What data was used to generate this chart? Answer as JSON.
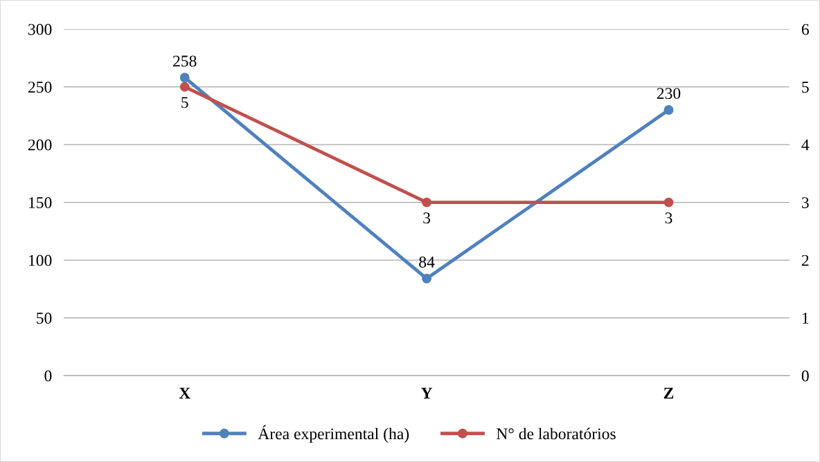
{
  "chart_data": {
    "type": "line",
    "categories": [
      "X",
      "Y",
      "Z"
    ],
    "series": [
      {
        "name": "Área experimental (ha)",
        "color": "#4f81bd",
        "values": [
          258,
          84,
          230
        ]
      },
      {
        "name": "N° de laboratórios",
        "color": "#c0504d",
        "values": [
          5,
          3,
          3
        ],
        "axis": "y2"
      }
    ],
    "ylim": [
      0,
      300
    ],
    "yticks": [
      0,
      50,
      100,
      150,
      200,
      250,
      300
    ],
    "y2lim": [
      0,
      6
    ],
    "y2ticks": [
      0,
      1,
      2,
      3,
      4,
      5,
      6
    ],
    "data_labels": true,
    "grid": "y",
    "legend": "bottom",
    "marker": "circle",
    "line_style": "solid"
  }
}
